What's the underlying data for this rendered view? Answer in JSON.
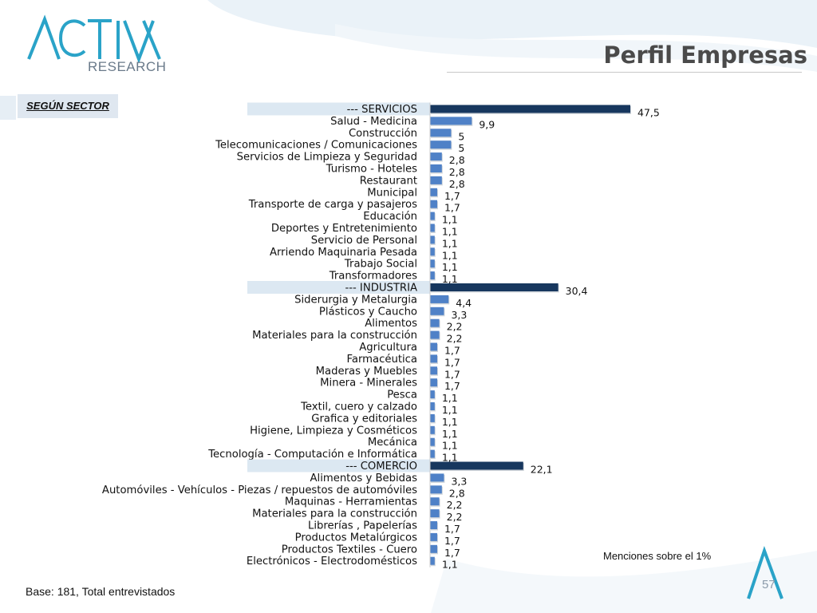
{
  "header": {
    "logo_text": "ACTIVA",
    "logo_subtext": "RESEARCH",
    "title": "Perfil Empresas",
    "section_label": "SEGÚN SECTOR"
  },
  "footer": {
    "note": "Menciones sobre el 1%",
    "base": "Base: 181, Total entrevistados",
    "page_number": "57"
  },
  "colors": {
    "group_bar": "#17375e",
    "item_bar": "#4f81c7",
    "group_label_bg": "#dce8f2",
    "brand": "#2aa3c8"
  },
  "chart_data": {
    "type": "bar",
    "orientation": "horizontal",
    "title": "",
    "xlabel": "",
    "ylabel": "",
    "categories": [
      "--- SERVICIOS",
      "Salud - Medicina",
      "Construcción",
      "Telecomunicaciones / Comunicaciones",
      "Servicios de Limpieza y Seguridad",
      "Turismo - Hoteles",
      "Restaurant",
      "Municipal",
      "Transporte de carga y pasajeros",
      "Educación",
      "Deportes y Entretenimiento",
      "Servicio de Personal",
      "Arriendo Maquinaria Pesada",
      "Trabajo Social",
      "Transformadores",
      "--- INDUSTRIA",
      "Siderurgia y Metalurgia",
      "Plásticos y Caucho",
      "Alimentos",
      "Materiales para la construcción",
      "Agricultura",
      "Farmacéutica",
      "Maderas y Muebles",
      "Minera - Minerales",
      "Pesca",
      "Textil, cuero y calzado",
      "Grafica y editoriales",
      "Higiene, Limpieza y Cosméticos",
      "Mecánica",
      "Tecnología - Computación e Informática",
      "--- COMERCIO",
      "Alimentos y Bebidas",
      "Automóviles - Vehículos - Piezas / repuestos de automóviles",
      "Maquinas - Herramientas",
      "Materiales para la construcción",
      "Librerías , Papelerías",
      "Productos Metalúrgicos",
      "Productos Textiles - Cuero",
      "Electrónicos - Electrodomésticos"
    ],
    "values": [
      47.5,
      9.9,
      5,
      5,
      2.8,
      2.8,
      2.8,
      1.7,
      1.7,
      1.1,
      1.1,
      1.1,
      1.1,
      1.1,
      1.1,
      30.4,
      4.4,
      3.3,
      2.2,
      2.2,
      1.7,
      1.7,
      1.7,
      1.7,
      1.1,
      1.1,
      1.1,
      1.1,
      1.1,
      1.1,
      22.1,
      3.3,
      2.8,
      2.2,
      2.2,
      1.7,
      1.7,
      1.7,
      1.1
    ],
    "value_labels": [
      "47,5",
      "9,9",
      "5",
      "5",
      "2,8",
      "2,8",
      "2,8",
      "1,7",
      "1,7",
      "1,1",
      "1,1",
      "1,1",
      "1,1",
      "1,1",
      "1,1",
      "30,4",
      "4,4",
      "3,3",
      "2,2",
      "2,2",
      "1,7",
      "1,7",
      "1,7",
      "1,7",
      "1,1",
      "1,1",
      "1,1",
      "1,1",
      "1,1",
      "1,1",
      "22,1",
      "3,3",
      "2,8",
      "2,2",
      "2,2",
      "1,7",
      "1,7",
      "1,7",
      "1,1"
    ],
    "group_headers": [
      "--- SERVICIOS",
      "--- INDUSTRIA",
      "--- COMERCIO"
    ],
    "xlim": [
      0,
      50
    ],
    "grid": false,
    "legend": "none"
  }
}
